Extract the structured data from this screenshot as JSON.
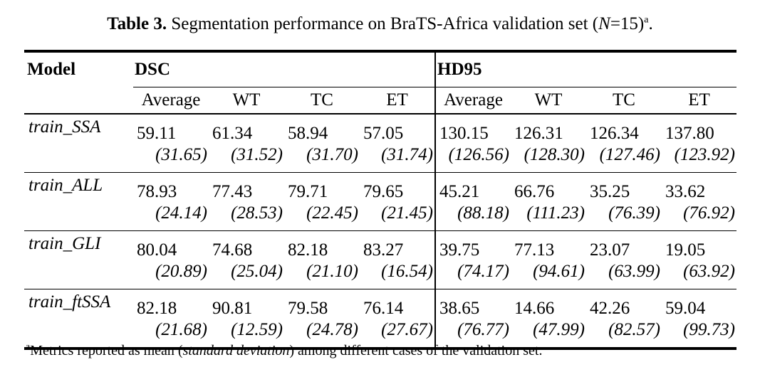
{
  "caption": {
    "label": "Table 3.",
    "text_before": " Segmentation performance on BraTS-Africa validation set (",
    "n_var": "N",
    "n_value": "=15)",
    "superscript": "a",
    "text_after": "."
  },
  "header": {
    "model": "Model",
    "group_dsc": "DSC",
    "group_hd95": "HD95",
    "subcols": [
      "Average",
      "WT",
      "TC",
      "ET"
    ]
  },
  "rows": [
    {
      "model": "train_SSA",
      "dsc": [
        {
          "mean": "59.11",
          "sd": "(31.65)"
        },
        {
          "mean": "61.34",
          "sd": "(31.52)"
        },
        {
          "mean": "58.94",
          "sd": "(31.70)"
        },
        {
          "mean": "57.05",
          "sd": "(31.74)"
        }
      ],
      "hd95": [
        {
          "mean": "130.15",
          "sd": "(126.56)"
        },
        {
          "mean": "126.31",
          "sd": "(128.30)"
        },
        {
          "mean": "126.34",
          "sd": "(127.46)"
        },
        {
          "mean": "137.80",
          "sd": "(123.92)"
        }
      ]
    },
    {
      "model": "train_ALL",
      "dsc": [
        {
          "mean": "78.93",
          "sd": "(24.14)"
        },
        {
          "mean": "77.43",
          "sd": "(28.53)"
        },
        {
          "mean": "79.71",
          "sd": "(22.45)"
        },
        {
          "mean": "79.65",
          "sd": "(21.45)"
        }
      ],
      "hd95": [
        {
          "mean": "45.21",
          "sd": "(88.18)"
        },
        {
          "mean": "66.76",
          "sd": "(111.23)"
        },
        {
          "mean": "35.25",
          "sd": "(76.39)"
        },
        {
          "mean": "33.62",
          "sd": "(76.92)"
        }
      ]
    },
    {
      "model": "train_GLI",
      "dsc": [
        {
          "mean": "80.04",
          "sd": "(20.89)"
        },
        {
          "mean": "74.68",
          "sd": "(25.04)"
        },
        {
          "mean": "82.18",
          "sd": "(21.10)"
        },
        {
          "mean": "83.27",
          "sd": "(16.54)"
        }
      ],
      "hd95": [
        {
          "mean": "39.75",
          "sd": "(74.17)"
        },
        {
          "mean": "77.13",
          "sd": "(94.61)"
        },
        {
          "mean": "23.07",
          "sd": "(63.99)"
        },
        {
          "mean": "19.05",
          "sd": "(63.92)"
        }
      ]
    },
    {
      "model": "train_ftSSA",
      "dsc": [
        {
          "mean": "82.18",
          "sd": "(21.68)"
        },
        {
          "mean": "90.81",
          "sd": "(12.59)"
        },
        {
          "mean": "79.58",
          "sd": "(24.78)"
        },
        {
          "mean": "76.14",
          "sd": "(27.67)"
        }
      ],
      "hd95": [
        {
          "mean": "38.65",
          "sd": "(76.77)"
        },
        {
          "mean": "14.66",
          "sd": "(47.99)"
        },
        {
          "mean": "42.26",
          "sd": "(82.57)"
        },
        {
          "mean": "59.04",
          "sd": "(99.73)"
        }
      ]
    }
  ],
  "footnote": {
    "superscript": "a",
    "text_before": "Metrics reported as mean (",
    "italic": "standard deviation",
    "text_after": ") among different cases of the validation set."
  }
}
